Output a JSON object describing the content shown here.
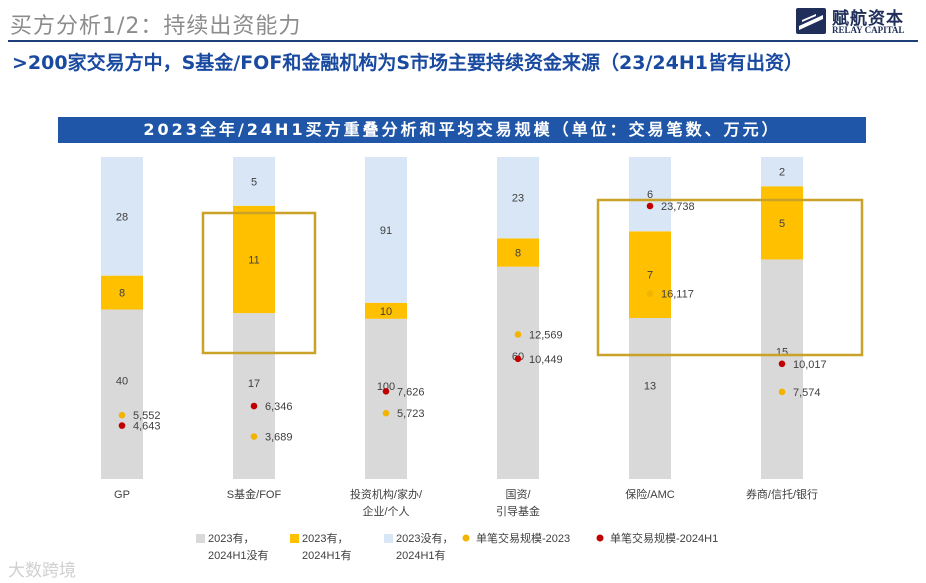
{
  "header": {
    "title": "买方分析1/2：持续出资能力",
    "logo_cn": "赋航资本",
    "logo_en": "RELAY CAPITAL",
    "headline": ">200家交易方中，S基金/FOF和金融机构为S市场主要持续资金来源（23/24H1皆有出资）"
  },
  "watermark": "大数跨境",
  "colors": {
    "navy": "#1f56a8",
    "gray": "#d9d9d9",
    "yellow": "#ffc000",
    "light_blue": "#d9e6f5",
    "dot_yellow": "#f2b400",
    "dot_red": "#c00000",
    "highlight_box": "#c9a227"
  },
  "chart_data": {
    "type": "bar",
    "stacked": "percent",
    "title": "2023全年/24H1买方重叠分析和平均交易规模（单位：交易笔数、万元）",
    "categories": [
      [
        "GP"
      ],
      [
        "S基金/FOF"
      ],
      [
        "投资机构/家办/",
        "企业/个人"
      ],
      [
        "国资/",
        "引导基金"
      ],
      [
        "保险/AMC"
      ],
      [
        "券商/信托/银行"
      ]
    ],
    "series": [
      {
        "name": "2023有，2024H1没有",
        "legend_lines": [
          "2023有，",
          "2024H1没有"
        ],
        "color": "#d9d9d9",
        "values": [
          40,
          17,
          100,
          60,
          13,
          15
        ]
      },
      {
        "name": "2023有，2024H1有",
        "legend_lines": [
          "2023有，",
          "2024H1有"
        ],
        "color": "#ffc000",
        "values": [
          8,
          11,
          10,
          8,
          7,
          5
        ]
      },
      {
        "name": "2023没有，2024H1有",
        "legend_lines": [
          "2023没有，",
          "2024H1有"
        ],
        "color": "#d9e6f5",
        "values": [
          28,
          5,
          91,
          23,
          6,
          2
        ]
      }
    ],
    "dot_series": [
      {
        "name": "单笔交易规模-2023",
        "color": "#f2b400",
        "values": [
          5552,
          3689,
          5723,
          12569,
          16117,
          7574
        ]
      },
      {
        "name": "单笔交易规模-2024H1",
        "color": "#c00000",
        "values": [
          4643,
          6346,
          7626,
          10449,
          23738,
          10017
        ]
      }
    ],
    "dot_axis_range": [
      0,
      28000
    ],
    "value_label_format": "thousands-comma",
    "highlighted_categories": [
      "S基金/FOF",
      "保险/AMC"
    ]
  }
}
